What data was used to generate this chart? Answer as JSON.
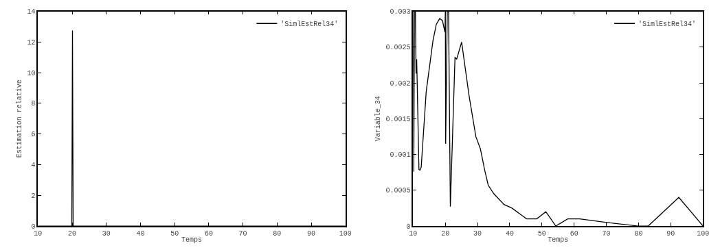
{
  "chart_data": [
    {
      "type": "line",
      "xlabel": "Temps",
      "ylabel": "Estimation relative",
      "xlim": [
        10,
        100
      ],
      "xticks": [
        10,
        20,
        30,
        40,
        50,
        60,
        70,
        80,
        90,
        100
      ],
      "ylim": [
        0,
        14
      ],
      "yticks": [
        0,
        2,
        4,
        6,
        8,
        10,
        12,
        14
      ],
      "legend": "top right",
      "marker": "none",
      "line_style": "solid",
      "series": [
        {
          "name": "'SimlEstRel34'",
          "color": "#000000",
          "x": [
            10,
            19.9,
            20.1,
            20.3,
            100
          ],
          "values": [
            0,
            0,
            12.75,
            0,
            0
          ]
        }
      ]
    },
    {
      "type": "line",
      "xlabel": "Temps",
      "ylabel": "Variable_34",
      "xlim": [
        10,
        100
      ],
      "xticks": [
        10,
        20,
        30,
        40,
        50,
        60,
        70,
        80,
        90,
        100
      ],
      "ylim": [
        0,
        0.003
      ],
      "yticks": [
        0,
        0.0005,
        0.001,
        0.0015,
        0.002,
        0.0025,
        0.003
      ],
      "legend": "top right",
      "marker": "none",
      "line_style": "solid",
      "series": [
        {
          "name": "'SimlEstRel34'",
          "color": "#000000",
          "x": [
            10.0,
            10.2,
            10.4,
            10.7,
            10.9,
            11.1,
            11.2,
            11.8,
            12.1,
            12.5,
            14.06,
            16.16,
            17.2,
            18.26,
            19.1,
            19.87,
            20.0,
            20.1,
            20.6,
            21.0,
            21.55,
            23.0,
            23.5,
            25.06,
            27.37,
            29.47,
            30.87,
            32.27,
            33.32,
            35.07,
            38.22,
            40.67,
            45.22,
            48.4,
            51.2,
            54.3,
            58.0,
            61.7,
            70.1,
            79.9,
            83.0,
            92.5,
            100
          ],
          "values": [
            0.003,
            0.00076,
            0.003,
            0.003,
            0.00213,
            0.00233,
            0.00213,
            0.00079,
            0.00078,
            0.00082,
            0.00188,
            0.00259,
            0.00282,
            0.0029,
            0.00287,
            0.00271,
            0.003,
            0.00115,
            0.003,
            0.003,
            0.00027,
            0.00236,
            0.00233,
            0.00257,
            0.00182,
            0.00125,
            0.00108,
            0.00077,
            0.00057,
            0.00045,
            0.0003,
            0.00025,
            0.0001,
            0.0001,
            0.0002,
            0,
            0.0001,
            0.0001,
            5e-05,
            0,
            0,
            0.0004,
            0
          ]
        }
      ]
    }
  ]
}
